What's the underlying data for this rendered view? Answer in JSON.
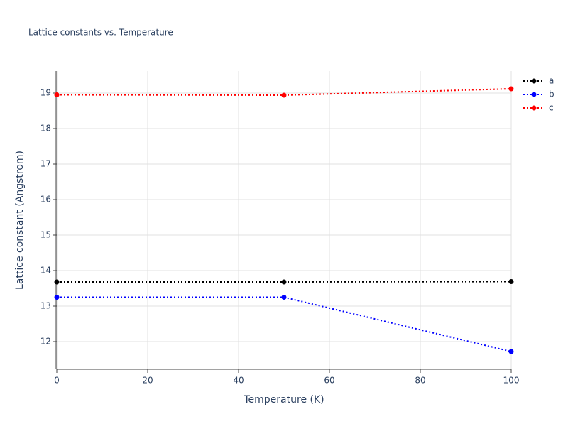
{
  "chart_data": {
    "type": "line",
    "title": "Lattice constants vs. Temperature",
    "x_label": "Temperature (K)",
    "y_label": "Lattice constant (Angstrom)",
    "x": [
      0,
      50,
      100
    ],
    "series": [
      {
        "name": "a",
        "color": "#000000",
        "values": [
          13.68,
          13.68,
          13.69
        ]
      },
      {
        "name": "b",
        "color": "#0000ff",
        "values": [
          13.25,
          13.25,
          11.72
        ]
      },
      {
        "name": "c",
        "color": "#ff0000",
        "values": [
          18.95,
          18.94,
          19.12
        ]
      }
    ],
    "xlim": [
      0,
      100
    ],
    "xticks": [
      0,
      20,
      40,
      60,
      80,
      100
    ],
    "ylim": [
      11.22,
      19.62
    ],
    "yticks": [
      12,
      13,
      14,
      15,
      16,
      17,
      18,
      19
    ],
    "grid": true,
    "legend": "top-right"
  }
}
